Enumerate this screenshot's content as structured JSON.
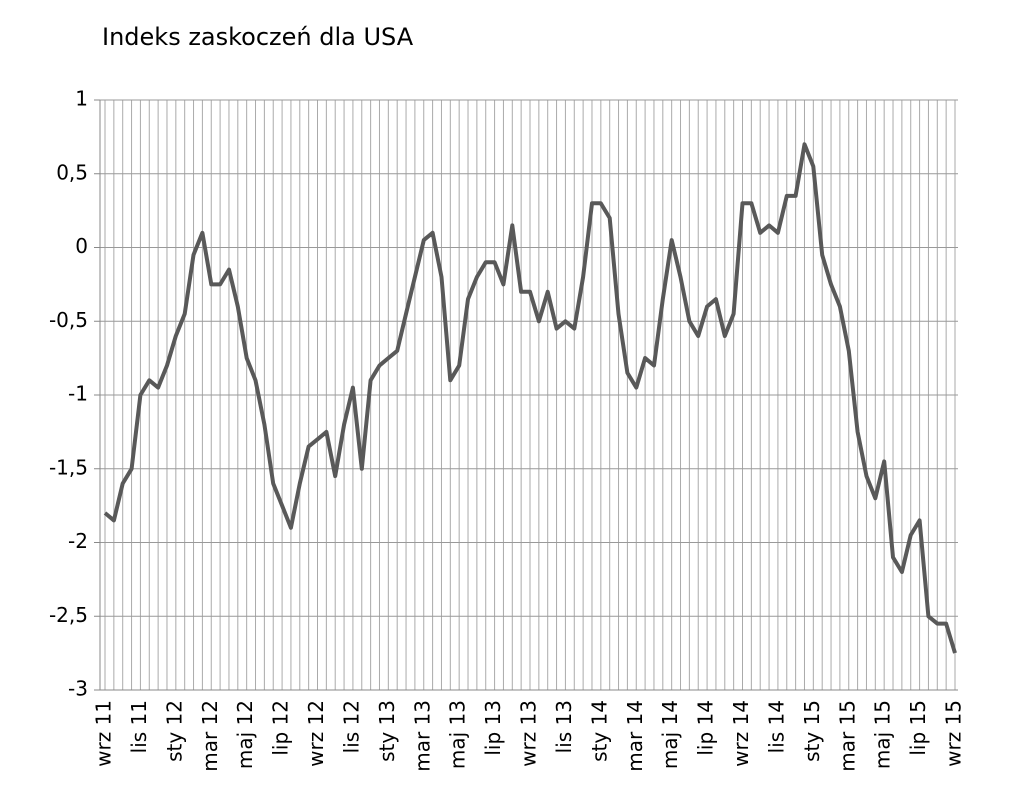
{
  "chart_data": {
    "type": "line",
    "title": "Indeks zaskoczeń dla USA",
    "categories": [
      "wrz 11",
      null,
      null,
      null,
      "lis 11",
      null,
      null,
      null,
      "sty 12",
      null,
      null,
      null,
      "mar 12",
      null,
      null,
      null,
      "maj 12",
      null,
      null,
      null,
      "lip 12",
      null,
      null,
      null,
      "wrz 12",
      null,
      null,
      null,
      "lis 12",
      null,
      null,
      null,
      "sty 13",
      null,
      null,
      null,
      "mar 13",
      null,
      null,
      null,
      "maj 13",
      null,
      null,
      null,
      "lip 13",
      null,
      null,
      null,
      "wrz 13",
      null,
      null,
      null,
      "lis 13",
      null,
      null,
      null,
      "sty 14",
      null,
      null,
      null,
      "mar 14",
      null,
      null,
      null,
      "maj 14",
      null,
      null,
      null,
      "lip 14",
      null,
      null,
      null,
      "wrz 14",
      null,
      null,
      null,
      "lis 14",
      null,
      null,
      null,
      "sty 15",
      null,
      null,
      null,
      "mar 15",
      null,
      null,
      null,
      "maj 15",
      null,
      null,
      null,
      "lip 15",
      null,
      null,
      null,
      "wrz 15"
    ],
    "values": [
      -1.8,
      -1.85,
      -1.6,
      -1.5,
      -1.0,
      -0.9,
      -0.95,
      -0.8,
      -0.6,
      -0.45,
      -0.05,
      0.1,
      -0.25,
      -0.25,
      -0.15,
      -0.4,
      -0.75,
      -0.9,
      -1.2,
      -1.6,
      -1.75,
      -1.9,
      -1.6,
      -1.35,
      -1.3,
      -1.25,
      -1.55,
      -1.2,
      -0.95,
      -1.5,
      -0.9,
      -0.8,
      -0.75,
      -0.7,
      -0.45,
      -0.2,
      0.05,
      0.1,
      -0.2,
      -0.9,
      -0.8,
      -0.35,
      -0.2,
      -0.1,
      -0.1,
      -0.25,
      0.15,
      -0.3,
      -0.3,
      -0.5,
      -0.3,
      -0.55,
      -0.5,
      -0.55,
      -0.2,
      0.3,
      0.3,
      0.2,
      -0.45,
      -0.85,
      -0.95,
      -0.75,
      -0.8,
      -0.35,
      0.05,
      -0.2,
      -0.5,
      -0.6,
      -0.4,
      -0.35,
      -0.6,
      -0.45,
      0.3,
      0.3,
      0.1,
      0.15,
      0.1,
      0.35,
      0.35,
      0.7,
      0.55,
      -0.05,
      -0.25,
      -0.4,
      -0.7,
      -1.25,
      -1.55,
      -1.7,
      -1.45,
      -2.1,
      -2.2,
      -1.95,
      -1.85,
      -2.5,
      -2.55,
      -2.55,
      -2.75
    ],
    "color": "#595959",
    "ylim": [
      -3,
      1
    ],
    "yticks": [
      -3,
      {
        "value": -2.5,
        "label": "-2,5"
      },
      -2,
      {
        "value": -1.5,
        "label": "-1,5"
      },
      -1,
      {
        "value": -0.5,
        "label": "-0,5"
      },
      0,
      {
        "value": 0.5,
        "label": "0,5"
      },
      1
    ],
    "grid": true
  }
}
